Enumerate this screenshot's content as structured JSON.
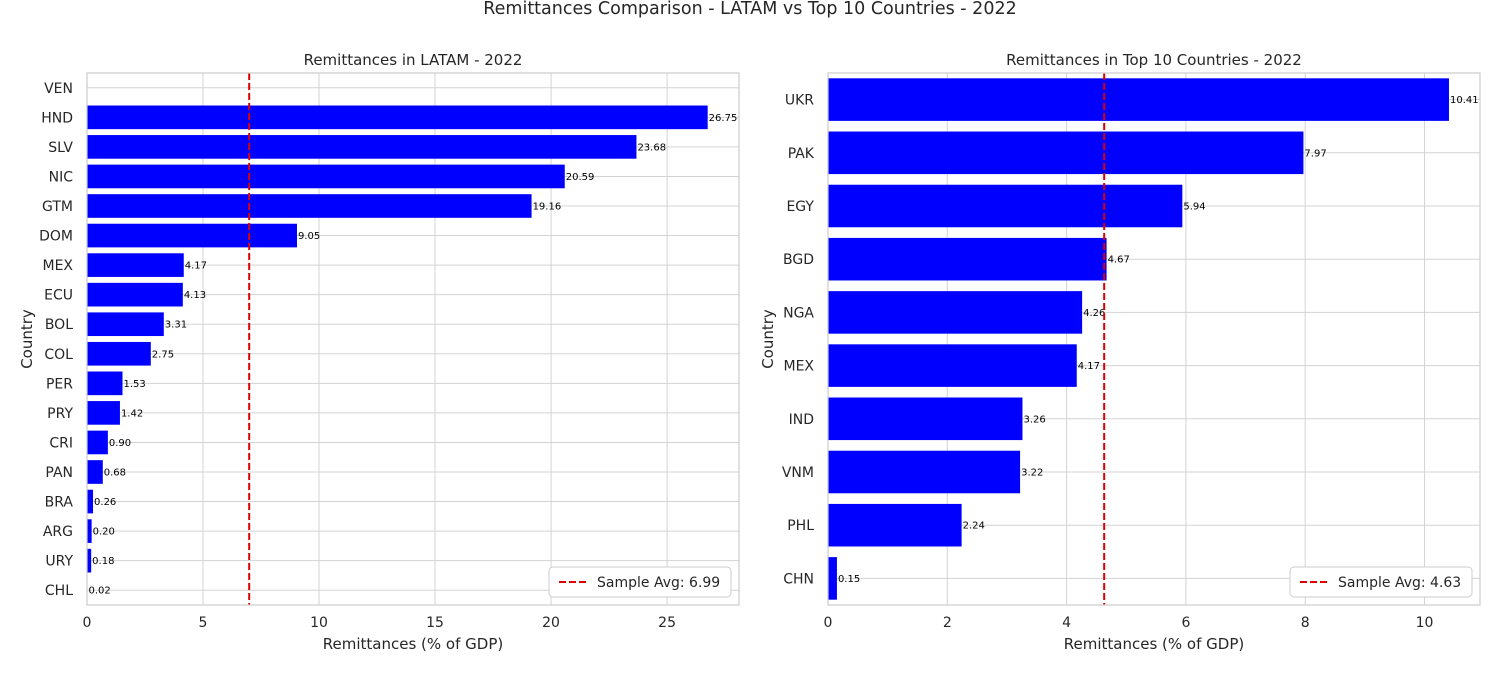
{
  "figure": {
    "title": "Remittances Comparison - LATAM vs Top 10 Countries - 2022"
  },
  "chart_data": [
    {
      "type": "bar",
      "orientation": "horizontal",
      "title": "Remittances in LATAM - 2022",
      "xlabel": "Remittances (% of GDP)",
      "ylabel": "Country",
      "categories": [
        "VEN",
        "HND",
        "SLV",
        "NIC",
        "GTM",
        "DOM",
        "MEX",
        "ECU",
        "BOL",
        "COL",
        "PER",
        "PRY",
        "CRI",
        "PAN",
        "BRA",
        "ARG",
        "URY",
        "CHL"
      ],
      "values": [
        null,
        26.75,
        23.68,
        20.59,
        19.16,
        9.05,
        4.17,
        4.13,
        3.31,
        2.75,
        1.53,
        1.42,
        0.9,
        0.68,
        0.26,
        0.2,
        0.18,
        0.02
      ],
      "value_labels": [
        "",
        "26.75",
        "23.68",
        "20.59",
        "19.16",
        "9.05",
        "4.17",
        "4.13",
        "3.31",
        "2.75",
        "1.53",
        "1.42",
        "0.90",
        "0.68",
        "0.26",
        "0.20",
        "0.18",
        "0.02"
      ],
      "xlim": [
        0,
        28.1
      ],
      "xticks": [
        0,
        5,
        10,
        15,
        20,
        25
      ],
      "bar_color": "#0000ff",
      "reference_line": {
        "value": 6.99,
        "color": "#dd0000",
        "label": "Sample Avg: 6.99"
      },
      "legend_position": "lower-right",
      "grid": true
    },
    {
      "type": "bar",
      "orientation": "horizontal",
      "title": "Remittances in Top 10 Countries - 2022",
      "xlabel": "Remittances (% of GDP)",
      "ylabel": "Country",
      "categories": [
        "UKR",
        "PAK",
        "EGY",
        "BGD",
        "NGA",
        "MEX",
        "IND",
        "VNM",
        "PHL",
        "CHN"
      ],
      "values": [
        10.41,
        7.97,
        5.94,
        4.67,
        4.26,
        4.17,
        3.26,
        3.22,
        2.24,
        0.15
      ],
      "value_labels": [
        "10.41",
        "7.97",
        "5.94",
        "4.67",
        "4.26",
        "4.17",
        "3.26",
        "3.22",
        "2.24",
        "0.15"
      ],
      "xlim": [
        0,
        10.93
      ],
      "xticks": [
        0,
        2,
        4,
        6,
        8,
        10
      ],
      "bar_color": "#0000ff",
      "reference_line": {
        "value": 4.63,
        "color": "#dd0000",
        "label": "Sample Avg: 4.63"
      },
      "legend_position": "lower-right",
      "grid": true
    }
  ]
}
